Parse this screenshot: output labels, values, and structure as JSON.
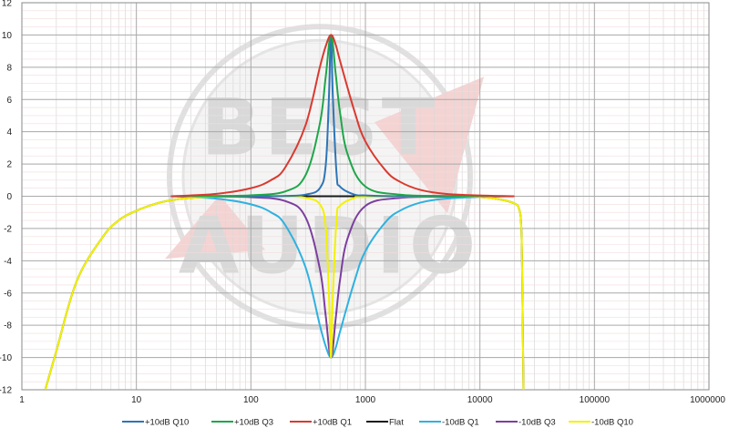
{
  "chart_data": {
    "type": "line",
    "title": "",
    "xlabel": "",
    "ylabel": "",
    "x_scale": "log",
    "xlim": [
      1,
      1000000
    ],
    "ylim": [
      -12,
      12
    ],
    "grid": true,
    "legend_position": "bottom",
    "watermark_text": "BEST AUDIO",
    "x_tick_labels": [
      "1",
      "10",
      "100",
      "1000",
      "10000",
      "100000",
      "1000000"
    ],
    "y_tick_labels": [
      "12",
      "10",
      "8",
      "6",
      "4",
      "2",
      "0",
      "-2",
      "-4",
      "-6",
      "-8",
      "-10",
      "-12"
    ],
    "y_tick_values": [
      12,
      10,
      8,
      6,
      4,
      2,
      0,
      -2,
      -4,
      -6,
      -8,
      -10,
      -12
    ],
    "x_tick_values": [
      1,
      10,
      100,
      1000,
      10000,
      100000,
      1000000
    ],
    "series": [
      {
        "name": "+10dB Q10",
        "color": "#2e75b6",
        "x": [
          20,
          100,
          200,
          300,
          400,
          450,
          480,
          500,
          520,
          560,
          600,
          800,
          1000,
          2000,
          5000,
          10000,
          20000
        ],
        "y": [
          0,
          0,
          0.02,
          0.1,
          0.5,
          1.9,
          6.1,
          10,
          6.1,
          1.4,
          0.6,
          0.1,
          0.05,
          0,
          0,
          0,
          0
        ]
      },
      {
        "name": "+10dB Q3",
        "color": "#1fa64a",
        "x": [
          20,
          50,
          100,
          200,
          300,
          400,
          450,
          500,
          550,
          600,
          700,
          1000,
          2000,
          5000,
          10000,
          20000
        ],
        "y": [
          0,
          0.02,
          0.06,
          0.3,
          1.3,
          4.5,
          7.4,
          10,
          7.6,
          5.2,
          2.6,
          0.6,
          0.1,
          0.02,
          0,
          0
        ]
      },
      {
        "name": "+10dB Q1",
        "color": "#d93a30",
        "x": [
          20,
          50,
          100,
          150,
          200,
          300,
          400,
          450,
          500,
          550,
          600,
          800,
          1000,
          1500,
          2000,
          3000,
          5000,
          10000,
          20000
        ],
        "y": [
          0,
          0.15,
          0.5,
          1.0,
          1.8,
          4.4,
          8.0,
          9.3,
          10,
          9.4,
          8.4,
          5.3,
          3.4,
          1.6,
          0.9,
          0.4,
          0.15,
          0.05,
          0
        ]
      },
      {
        "name": "Flat",
        "color": "#1a1a1a",
        "x": [
          1.6,
          2,
          3,
          5,
          7,
          10,
          15,
          20,
          30,
          50,
          100,
          1000,
          5000,
          10000,
          15000,
          20000,
          22000,
          23000,
          23500,
          24000
        ],
        "y": [
          -12,
          -9.6,
          -5.3,
          -2.6,
          -1.5,
          -0.9,
          -0.45,
          -0.25,
          -0.1,
          -0.02,
          0,
          0,
          0,
          -0.05,
          -0.2,
          -0.45,
          -0.8,
          -2,
          -6,
          -12
        ]
      },
      {
        "name": "-10dB Q1",
        "color": "#2fb1e0",
        "x": [
          20,
          50,
          100,
          150,
          200,
          300,
          400,
          450,
          500,
          550,
          600,
          800,
          1000,
          1500,
          2000,
          3000,
          5000,
          10000,
          20000
        ],
        "y": [
          0,
          -0.15,
          -0.5,
          -1.0,
          -1.8,
          -4.4,
          -8.0,
          -9.3,
          -10,
          -9.4,
          -8.4,
          -5.3,
          -3.4,
          -1.6,
          -0.9,
          -0.4,
          -0.15,
          -0.05,
          0
        ]
      },
      {
        "name": "-10dB Q3",
        "color": "#7b3f9e",
        "x": [
          20,
          50,
          100,
          200,
          300,
          400,
          450,
          500,
          550,
          600,
          700,
          1000,
          2000,
          5000,
          10000,
          20000
        ],
        "y": [
          0,
          -0.02,
          -0.06,
          -0.3,
          -1.3,
          -4.5,
          -7.4,
          -10,
          -7.6,
          -5.2,
          -2.6,
          -0.6,
          -0.1,
          -0.02,
          0,
          0
        ]
      },
      {
        "name": "-10dB Q10",
        "color": "#f2f200",
        "x": [
          1.6,
          2,
          3,
          5,
          7,
          10,
          15,
          20,
          30,
          50,
          100,
          200,
          300,
          400,
          450,
          480,
          500,
          520,
          560,
          600,
          800,
          1000,
          5000,
          10000,
          15000,
          20000,
          22000,
          23000,
          23500,
          24000
        ],
        "y": [
          -12,
          -9.6,
          -5.3,
          -2.6,
          -1.5,
          -0.9,
          -0.45,
          -0.25,
          -0.1,
          -0.02,
          0,
          -0.02,
          -0.1,
          -0.5,
          -1.9,
          -6.1,
          -10,
          -6.1,
          -1.4,
          -0.6,
          -0.1,
          -0.05,
          0,
          -0.05,
          -0.2,
          -0.45,
          -0.8,
          -2,
          -6,
          -12
        ]
      }
    ]
  }
}
